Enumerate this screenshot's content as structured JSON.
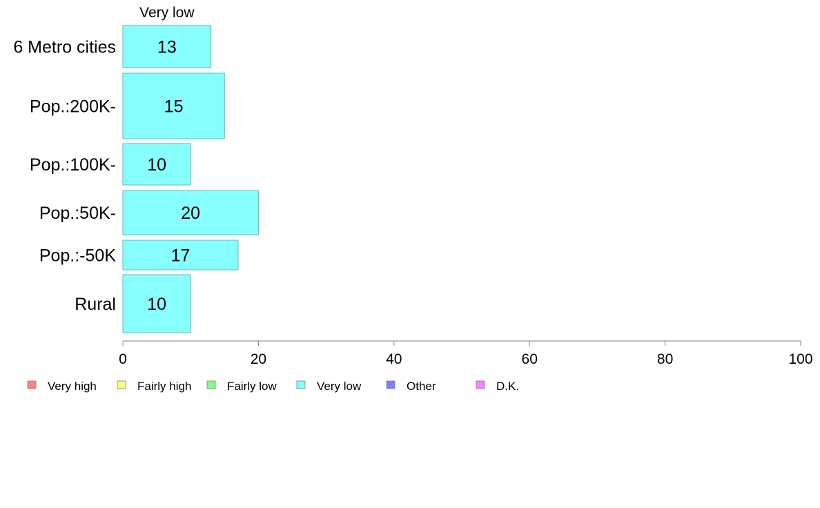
{
  "chart_data": {
    "type": "bar",
    "orientation": "horizontal",
    "categories": [
      "6 Metro cities",
      "Pop.:200K-",
      "Pop.:100K-",
      "Pop.:50K-",
      "Pop.:-50K",
      "Rural"
    ],
    "series": [
      {
        "name": "Very low",
        "values": [
          13,
          15,
          10,
          20,
          17,
          10
        ]
      }
    ],
    "bar_label": "Very low",
    "xlim": [
      0,
      100
    ],
    "xticks": [
      0,
      20,
      40,
      60,
      80,
      100
    ],
    "grid": false,
    "legend_position": "bottom-left",
    "legend": [
      {
        "label": "Very high",
        "color": "#ff8080"
      },
      {
        "label": "Fairly high",
        "color": "#ffff80"
      },
      {
        "label": "Fairly low",
        "color": "#80ff80"
      },
      {
        "label": "Very low",
        "color": "#80ffff"
      },
      {
        "label": "Other",
        "color": "#8080ff"
      },
      {
        "label": "D.K.",
        "color": "#ff80ff"
      }
    ],
    "bar_color": "#88ffff",
    "bar_edge_color": "#5bbcbc"
  }
}
